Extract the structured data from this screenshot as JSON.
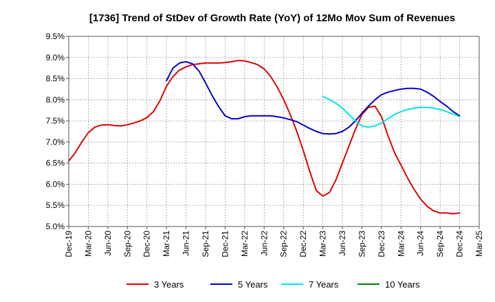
{
  "chart_data": {
    "type": "line",
    "title": "[1736]  Trend of StDev of Growth Rate (YoY) of 12Mo Mov Sum of Revenues",
    "xlabel": "",
    "ylabel": "",
    "ylim": [
      5.0,
      9.5
    ],
    "y_ticks": [
      "5.0%",
      "5.5%",
      "6.0%",
      "6.5%",
      "7.0%",
      "7.5%",
      "8.0%",
      "8.5%",
      "9.0%",
      "9.5%"
    ],
    "y_tick_values": [
      5.0,
      5.5,
      6.0,
      6.5,
      7.0,
      7.5,
      8.0,
      8.5,
      9.0,
      9.5
    ],
    "x_ticks": [
      "Dec-19",
      "Mar-20",
      "Jun-20",
      "Sep-20",
      "Dec-20",
      "Mar-21",
      "Jun-21",
      "Sep-21",
      "Dec-21",
      "Mar-22",
      "Jun-22",
      "Sep-22",
      "Dec-22",
      "Mar-23",
      "Jun-23",
      "Sep-23",
      "Dec-23",
      "Mar-24",
      "Jun-24",
      "Sep-24",
      "Dec-24",
      "Mar-25"
    ],
    "x_range_months": [
      0,
      63
    ],
    "grid": true,
    "legend_position": "bottom",
    "series": [
      {
        "name": "3 Years",
        "color": "#dd0000",
        "x": [
          0,
          1,
          2,
          3,
          4,
          5,
          6,
          7,
          8,
          9,
          10,
          11,
          12,
          13,
          14,
          15,
          16,
          17,
          18,
          19,
          20,
          21,
          22,
          23,
          24,
          25,
          26,
          27,
          28,
          29,
          30,
          31,
          32,
          33,
          34,
          35,
          36,
          37,
          38,
          39,
          40,
          41,
          42,
          43,
          44,
          45,
          46,
          47,
          48,
          49,
          50,
          51,
          52,
          53,
          54,
          55,
          56,
          57,
          58,
          59,
          60
        ],
        "values": [
          6.55,
          6.75,
          7.0,
          7.22,
          7.35,
          7.4,
          7.41,
          7.39,
          7.38,
          7.41,
          7.45,
          7.5,
          7.58,
          7.72,
          7.98,
          8.32,
          8.55,
          8.7,
          8.78,
          8.83,
          8.85,
          8.87,
          8.87,
          8.87,
          8.88,
          8.9,
          8.93,
          8.92,
          8.88,
          8.83,
          8.73,
          8.55,
          8.3,
          8.0,
          7.65,
          7.25,
          6.8,
          6.3,
          5.85,
          5.72,
          5.8,
          6.1,
          6.5,
          6.9,
          7.3,
          7.65,
          7.82,
          7.85,
          7.6,
          7.15,
          6.75,
          6.45,
          6.15,
          5.88,
          5.65,
          5.48,
          5.37,
          5.32,
          5.32,
          5.3,
          5.32
        ]
      },
      {
        "name": "5 Years",
        "color": "#0000cc",
        "x": [
          15,
          16,
          17,
          18,
          19,
          20,
          21,
          22,
          23,
          24,
          25,
          26,
          27,
          28,
          29,
          30,
          31,
          32,
          33,
          34,
          35,
          36,
          37,
          38,
          39,
          40,
          41,
          42,
          43,
          44,
          45,
          46,
          47,
          48,
          49,
          50,
          51,
          52,
          53,
          54,
          55,
          56,
          57,
          58,
          59,
          60
        ],
        "values": [
          8.45,
          8.75,
          8.87,
          8.9,
          8.85,
          8.68,
          8.4,
          8.1,
          7.84,
          7.62,
          7.55,
          7.55,
          7.6,
          7.62,
          7.62,
          7.62,
          7.62,
          7.6,
          7.57,
          7.53,
          7.48,
          7.4,
          7.32,
          7.25,
          7.2,
          7.19,
          7.2,
          7.25,
          7.35,
          7.5,
          7.68,
          7.85,
          8.0,
          8.12,
          8.18,
          8.22,
          8.25,
          8.27,
          8.27,
          8.25,
          8.18,
          8.08,
          7.96,
          7.85,
          7.72,
          7.62
        ]
      },
      {
        "name": "7 Years",
        "color": "#00e5e5",
        "x": [
          39,
          40,
          41,
          42,
          43,
          44,
          45,
          46,
          47,
          48,
          49,
          50,
          51,
          52,
          53,
          54,
          55,
          56,
          57,
          58,
          59,
          60
        ],
        "values": [
          8.08,
          8.0,
          7.92,
          7.8,
          7.65,
          7.5,
          7.38,
          7.35,
          7.38,
          7.45,
          7.55,
          7.65,
          7.72,
          7.77,
          7.8,
          7.82,
          7.82,
          7.8,
          7.77,
          7.72,
          7.66,
          7.6
        ]
      },
      {
        "name": "10 Years",
        "color": "#008000",
        "x": [],
        "values": []
      }
    ]
  }
}
